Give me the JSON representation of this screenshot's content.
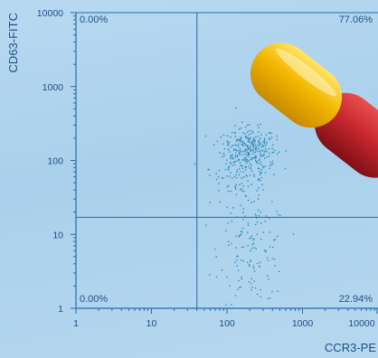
{
  "chart_data": {
    "type": "scatter",
    "xlabel": "CCR3-PE",
    "ylabel": "CD63-FITC",
    "x_scale": "log",
    "y_scale": "log",
    "xlim": [
      1,
      10000
    ],
    "ylim": [
      1,
      10000
    ],
    "x_ticks": [
      "1",
      "10",
      "100",
      "1000",
      "10000"
    ],
    "y_ticks": [
      "10000",
      "1000",
      "100",
      "10",
      "1"
    ],
    "gate": {
      "x": 40,
      "y": 17
    },
    "quadrants": {
      "upper_left": "0.00%",
      "upper_right": "77.06%",
      "lower_left": "0.00%",
      "lower_right": "22.94%"
    },
    "clusters": [
      {
        "name": "",
        "x_center": 200,
        "y_center": 150,
        "x_spread_log": 0.17,
        "y_spread_log": 0.14,
        "count": 230
      },
      {
        "name": "",
        "x_center": 160,
        "y_center": 80,
        "x_spread_log": 0.22,
        "y_spread_log": 0.25,
        "count": 170
      },
      {
        "name": "",
        "x_center": 220,
        "y_center": 6,
        "x_spread_log": 0.22,
        "y_spread_log": 0.35,
        "count": 130
      }
    ],
    "marker_color": "#2e8bb3",
    "axis_color": "#2a6aa5",
    "grid": false
  },
  "decoration": {
    "capsule_colors": [
      "#f2b800",
      "#c3242c"
    ]
  }
}
